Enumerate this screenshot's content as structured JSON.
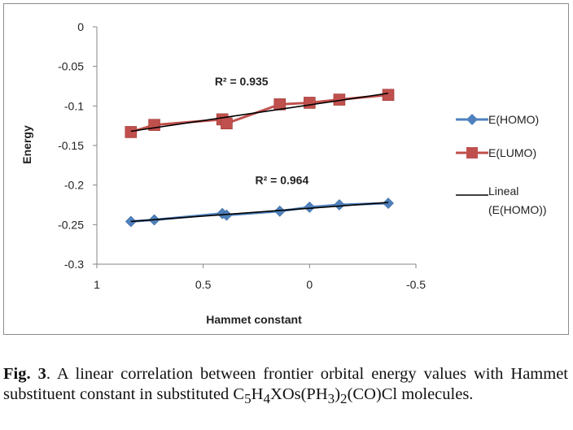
{
  "chart_data": {
    "type": "scatter",
    "xlabel": "Hammet constant",
    "ylabel": "Energy",
    "xlim": [
      1,
      -0.5
    ],
    "ylim": [
      -0.3,
      0
    ],
    "x_reversed": true,
    "xticks": [
      "1",
      "0.5",
      "0",
      "-0.5"
    ],
    "yticks": [
      "0",
      "-0.05",
      "-0.1",
      "-0.15",
      "-0.2",
      "-0.25",
      "-0.3"
    ],
    "grid": false,
    "legend_position": "right",
    "series": [
      {
        "name": "E(HOMO)",
        "color": "#4F81BD",
        "marker": "diamond",
        "x": [
          0.84,
          0.73,
          0.41,
          0.39,
          0.14,
          0.0,
          -0.14,
          -0.37
        ],
        "y": [
          -0.246,
          -0.244,
          -0.236,
          -0.238,
          -0.233,
          -0.228,
          -0.225,
          -0.223
        ]
      },
      {
        "name": "E(LUMO)",
        "color": "#C0504D",
        "marker": "square",
        "x": [
          0.84,
          0.73,
          0.41,
          0.39,
          0.14,
          0.0,
          -0.14,
          -0.37
        ],
        "y": [
          -0.133,
          -0.124,
          -0.117,
          -0.122,
          -0.098,
          -0.096,
          -0.092,
          -0.086
        ]
      }
    ],
    "trendlines": [
      {
        "name": "Lineal (E(HOMO))",
        "color": "#000000",
        "x": [
          0.84,
          -0.37
        ],
        "y": [
          -0.246,
          -0.222
        ],
        "legend": true
      },
      {
        "name": "",
        "color": "#000000",
        "x": [
          0.84,
          -0.37
        ],
        "y": [
          -0.132,
          -0.084
        ],
        "legend": false
      }
    ],
    "annotations": [
      {
        "text": "R² = 0.935",
        "x": 0.32,
        "y": -0.074
      },
      {
        "text": "R² = 0.964",
        "x": 0.13,
        "y": -0.199
      }
    ],
    "legend_entries": [
      "E(HOMO)",
      "E(LUMO)",
      "Lineal",
      "(E(HOMO))"
    ]
  },
  "caption": {
    "label": "Fig. 3",
    "text_1": ". A linear correlation between frontier orbital energy values with Hammet substituent constant in substituted C",
    "sub_1": "5",
    "text_2": "H",
    "sub_2": "4",
    "text_3": "XOs(PH",
    "sub_3": "3",
    "text_4": ")",
    "sub_4": "2",
    "text_5": "(CO)Cl molecules."
  }
}
